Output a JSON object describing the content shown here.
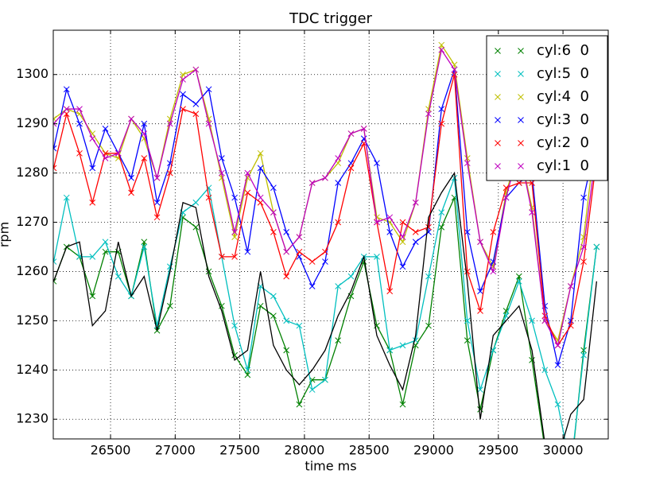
{
  "chart_data": {
    "type": "line",
    "title": "TDC trigger",
    "x_label": "time ms",
    "y_label": "rpm",
    "x": [
      26060,
      26160,
      26260,
      26360,
      26460,
      26560,
      26660,
      26760,
      26860,
      26960,
      27060,
      27160,
      27260,
      27360,
      27460,
      27560,
      27660,
      27760,
      27860,
      27960,
      28060,
      28160,
      28260,
      28360,
      28460,
      28560,
      28660,
      28760,
      28860,
      28960,
      29060,
      29160,
      29260,
      29360,
      29460,
      29560,
      29660,
      29760,
      29860,
      29960,
      30060,
      30160,
      30260
    ],
    "series": [
      {
        "name": "cyl:6  0",
        "color": "#008000",
        "values": [
          1258,
          1265,
          1263,
          1255,
          1264,
          1264,
          1255,
          1266,
          1248,
          1253,
          1271,
          1269,
          1260,
          1253,
          1243,
          1239,
          1253,
          1251,
          1244,
          1233,
          1238,
          1238,
          1246,
          1255,
          1262,
          1249,
          1244,
          1233,
          1245,
          1249,
          1269,
          1275,
          1246,
          1232,
          1244,
          1252,
          1259,
          1242,
          1224,
          1220,
          1219,
          1244,
          1265
        ]
      },
      {
        "name": "cyl:5  0",
        "color": "#00bfbf",
        "values": [
          1262,
          1275,
          1263,
          1263,
          1266,
          1259,
          1255,
          1265,
          1249,
          1261,
          1272,
          1274,
          1277,
          1263,
          1249,
          1240,
          1257,
          1255,
          1250,
          1249,
          1236,
          1238,
          1257,
          1259,
          1263,
          1263,
          1244,
          1245,
          1246,
          1259,
          1272,
          1279,
          1250,
          1236,
          1244,
          1251,
          1258,
          1250,
          1240,
          1233,
          1220,
          1243,
          1265
        ]
      },
      {
        "name": "cyl:4  0",
        "color": "#bfbf00",
        "values": [
          1291,
          1293,
          1292,
          1288,
          1284,
          1283,
          1291,
          1287,
          1279,
          1291,
          1300,
          1301,
          1291,
          1279,
          1267,
          1279,
          1284,
          1272,
          1264,
          1267,
          1278,
          1279,
          1282,
          1288,
          1289,
          1271,
          1270,
          1266,
          1274,
          1293,
          1306,
          1302,
          1283,
          1266,
          1261,
          1276,
          1285,
          1273,
          1250,
          1246,
          1257,
          1267,
          1289
        ]
      },
      {
        "name": "cyl:3  0",
        "color": "#0000ff",
        "values": [
          1285,
          1297,
          1290,
          1281,
          1289,
          1284,
          1279,
          1290,
          1274,
          1282,
          1296,
          1294,
          1297,
          1283,
          1275,
          1264,
          1281,
          1277,
          1268,
          1263,
          1257,
          1262,
          1278,
          1282,
          1287,
          1282,
          1268,
          1261,
          1266,
          1268,
          1293,
          1301,
          1268,
          1256,
          1262,
          1275,
          1278,
          1280,
          1253,
          1241,
          1250,
          1275,
          1287
        ]
      },
      {
        "name": "cyl:2  0",
        "color": "#ff0000",
        "values": [
          1281,
          1292,
          1284,
          1274,
          1284,
          1284,
          1276,
          1283,
          1271,
          1280,
          1293,
          1292,
          1275,
          1263,
          1263,
          1276,
          1274,
          1268,
          1259,
          1264,
          1262,
          1264,
          1270,
          1281,
          1286,
          1270,
          1256,
          1270,
          1268,
          1269,
          1290,
          1300,
          1260,
          1252,
          1268,
          1277,
          1278,
          1278,
          1251,
          1245,
          1249,
          1262,
          1283
        ]
      },
      {
        "name": "cyl:1  0",
        "color": "#bf00bf",
        "values": [
          1290,
          1293,
          1293,
          1287,
          1283,
          1284,
          1291,
          1288,
          1279,
          1290,
          1299,
          1301,
          1290,
          1280,
          1268,
          1280,
          1275,
          1272,
          1264,
          1267,
          1278,
          1279,
          1283,
          1288,
          1289,
          1270,
          1271,
          1267,
          1274,
          1292,
          1305,
          1301,
          1282,
          1266,
          1260,
          1275,
          1285,
          1272,
          1250,
          1245,
          1257,
          1265,
          1285
        ]
      },
      {
        "color": "#000000",
        "values": [
          1258,
          1265,
          1266,
          1249,
          1252,
          1266,
          1255,
          1259,
          1248,
          1260,
          1274,
          1273,
          1259,
          1252,
          1242,
          1244,
          1260,
          1245,
          1240,
          1237,
          1240,
          1244,
          1251,
          1256,
          1263,
          1247,
          1241,
          1236,
          1247,
          1271,
          1276,
          1280,
          1258,
          1230,
          1247,
          1250,
          1253,
          1244,
          1225,
          1222,
          1231,
          1234,
          1258
        ]
      }
    ],
    "xlim": [
      26057,
      30350
    ],
    "ylim": [
      1226,
      1309
    ],
    "xticks": [
      26500,
      27000,
      27500,
      28000,
      28500,
      29000,
      29500,
      30000
    ],
    "yticks": [
      1230,
      1240,
      1250,
      1260,
      1270,
      1280,
      1290,
      1300
    ],
    "grid": true,
    "legend": "upper right"
  }
}
